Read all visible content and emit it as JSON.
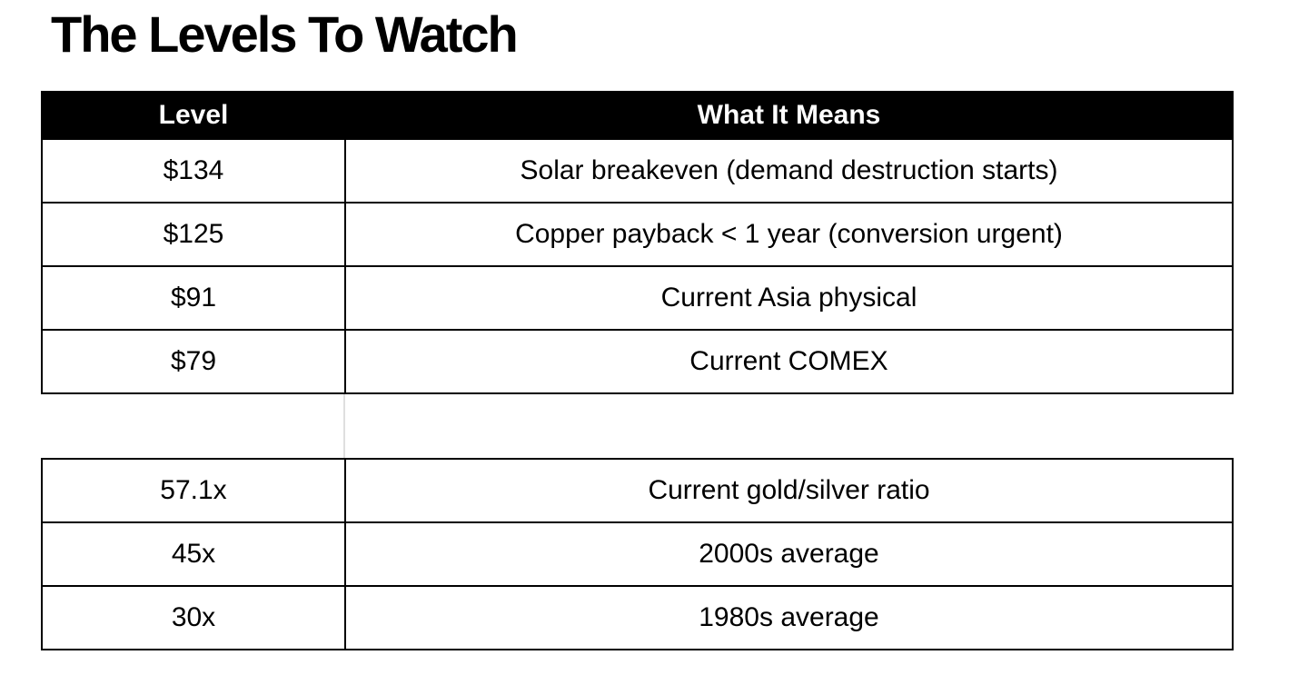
{
  "page": {
    "title": "The Levels To Watch"
  },
  "table": {
    "headers": [
      {
        "label": "Level"
      },
      {
        "label": "What It Means"
      }
    ],
    "levels_rows": [
      {
        "level": "$134",
        "meaning": "Solar breakeven (demand destruction starts)"
      },
      {
        "level": "$125",
        "meaning": "Copper payback < 1 year (conversion urgent)"
      },
      {
        "level": "$91",
        "meaning": "Current Asia physical"
      },
      {
        "level": "$79",
        "meaning": "Current COMEX"
      }
    ],
    "ratio_rows": [
      {
        "level": "57.1x",
        "meaning": "Current gold/silver ratio"
      },
      {
        "level": "45x",
        "meaning": "2000s average"
      },
      {
        "level": "30x",
        "meaning": "1980s average"
      }
    ]
  },
  "colors": {
    "background": "#ffffff",
    "header_bg": "#000000",
    "header_text": "#ffffff",
    "body_text": "#000000",
    "border": "#000000",
    "gap_divider": "#dfdfdf"
  }
}
